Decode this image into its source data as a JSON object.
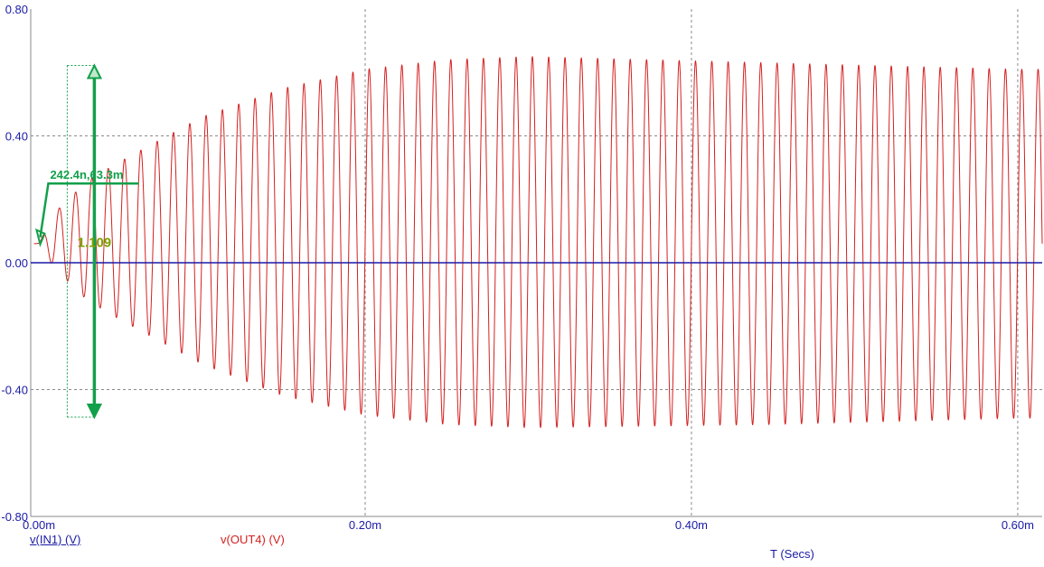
{
  "chart_data": {
    "type": "line",
    "xlabel": "T (Secs)",
    "ylabel": "",
    "xlim": [
      -5e-06,
      0.000615
    ],
    "ylim": [
      -0.8,
      0.8
    ],
    "x_ticks": [
      {
        "value": 0.0,
        "label": "0.00m"
      },
      {
        "value": 0.0002,
        "label": "0.20m"
      },
      {
        "value": 0.0004,
        "label": "0.40m"
      },
      {
        "value": 0.0006,
        "label": "0.60m"
      }
    ],
    "y_ticks": [
      {
        "value": 0.8,
        "label": "0.80"
      },
      {
        "value": 0.4,
        "label": "0.40"
      },
      {
        "value": 0.0,
        "label": "0.00"
      },
      {
        "value": -0.4,
        "label": "-0.40"
      },
      {
        "value": -0.8,
        "label": "-0.80"
      }
    ],
    "grid": true,
    "series": [
      {
        "name": "v(IN1) (V)",
        "color": "#1a1aa6",
        "description_values": {
          "dc_level": 0.0,
          "amplitude": 0.0
        }
      },
      {
        "name": "v(OUT4) (V)",
        "color": "#d42020",
        "period": 1e-05,
        "x_start": -3e-06,
        "x_end": 0.000615,
        "envelope": [
          {
            "x": 0.0,
            "max": 0.063,
            "min": 0.06
          },
          {
            "x": 5e-06,
            "max": 0.11,
            "min": 0.02
          },
          {
            "x": 1e-05,
            "max": 0.16,
            "min": -0.02
          },
          {
            "x": 3e-05,
            "max": 0.26,
            "min": -0.12
          },
          {
            "x": 5e-05,
            "max": 0.32,
            "min": -0.18
          },
          {
            "x": 0.0001,
            "max": 0.46,
            "min": -0.32
          },
          {
            "x": 0.00015,
            "max": 0.55,
            "min": -0.42
          },
          {
            "x": 0.0002,
            "max": 0.61,
            "min": -0.48
          },
          {
            "x": 0.00025,
            "max": 0.64,
            "min": -0.51
          },
          {
            "x": 0.0003,
            "max": 0.65,
            "min": -0.52
          },
          {
            "x": 0.00045,
            "max": 0.63,
            "min": -0.51
          },
          {
            "x": 0.0006,
            "max": 0.61,
            "min": -0.49
          }
        ]
      }
    ],
    "annotations": [
      {
        "type": "point-marker",
        "text": "242.4n,63.3m",
        "x": 2.424e-07,
        "y": 0.0633,
        "color": "#12a04b"
      },
      {
        "type": "measure",
        "text": "1.109",
        "x": 3.4e-05,
        "y_bottom": -0.487,
        "y_top": 0.622,
        "color": "#12a04b"
      }
    ]
  }
}
